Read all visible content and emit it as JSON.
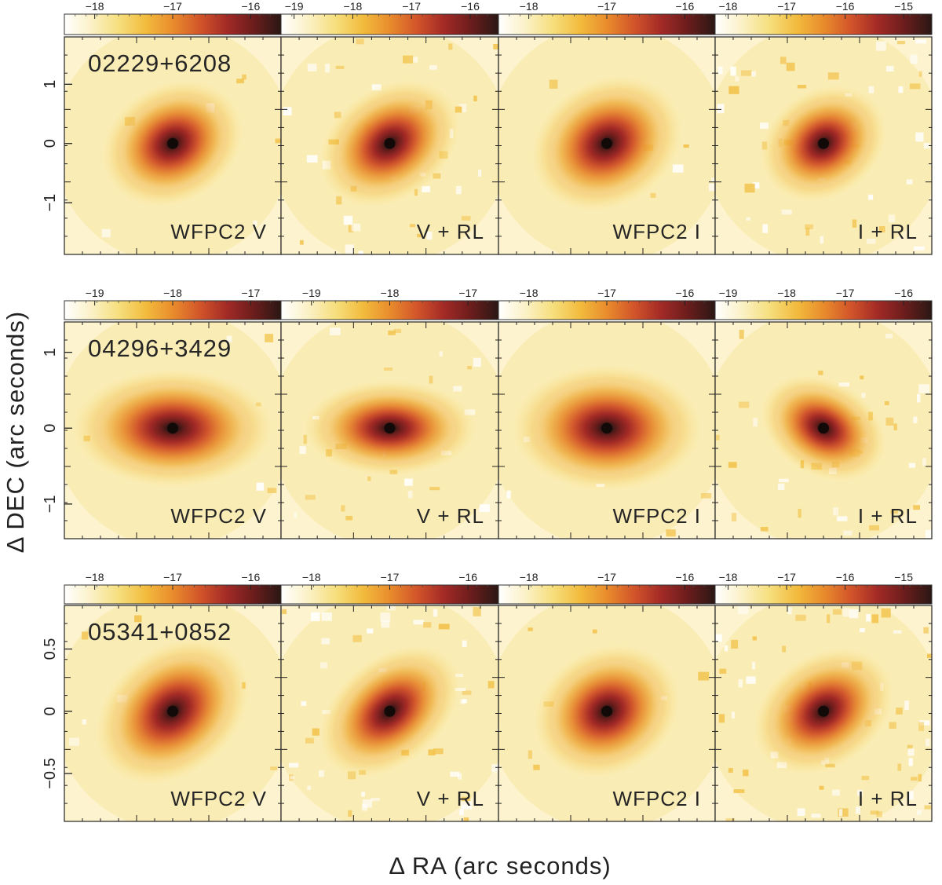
{
  "figure": {
    "xlabel": "Δ RA (arc seconds)",
    "ylabel": "Δ DEC (arc seconds)"
  },
  "colormap": [
    "#ffffff",
    "#fbf1c6",
    "#f6df7e",
    "#f2bc3e",
    "#e98c2c",
    "#d2552a",
    "#a32a26",
    "#6a1d1c",
    "#2a1714"
  ],
  "rows": [
    {
      "object": "02229+6208",
      "yticks": [
        {
          "v": 1,
          "label": "1"
        },
        {
          "v": 0,
          "label": "0"
        },
        {
          "v": -1,
          "label": "−1"
        }
      ],
      "panels": [
        {
          "label": "WFPC2 V",
          "cbar_ticks": [
            "−18",
            "−17",
            "−16"
          ],
          "size": 0.42,
          "angle": 30,
          "elong": 1.25,
          "noise": 0.05
        },
        {
          "label": "V + RL",
          "cbar_ticks": [
            "−19",
            "−18",
            "−17",
            "−16"
          ],
          "size": 0.4,
          "angle": 35,
          "elong": 1.35,
          "noise": 0.3
        },
        {
          "label": "WFPC2 I",
          "cbar_ticks": [
            "−18",
            "−17",
            "−16"
          ],
          "size": 0.45,
          "angle": 30,
          "elong": 1.25,
          "noise": 0.05
        },
        {
          "label": "I + RL",
          "cbar_ticks": [
            "−18",
            "−17",
            "−16",
            "−15"
          ],
          "size": 0.38,
          "angle": 35,
          "elong": 1.25,
          "noise": 0.35
        }
      ]
    },
    {
      "object": "04296+3429",
      "yticks": [
        {
          "v": 1,
          "label": "1"
        },
        {
          "v": 0,
          "label": "0"
        },
        {
          "v": -1,
          "label": "−1"
        }
      ],
      "panels": [
        {
          "label": "WFPC2 V",
          "cbar_ticks": [
            "−19",
            "−18",
            "−17"
          ],
          "size": 0.42,
          "angle": 0,
          "elong": 1.7,
          "noise": 0.05
        },
        {
          "label": "V + RL",
          "cbar_ticks": [
            "−19",
            "−18",
            "−17"
          ],
          "size": 0.34,
          "angle": 0,
          "elong": 1.8,
          "noise": 0.2
        },
        {
          "label": "WFPC2 I",
          "cbar_ticks": [
            "−18",
            "−17",
            "−16"
          ],
          "size": 0.45,
          "angle": 0,
          "elong": 1.5,
          "noise": 0.05
        },
        {
          "label": "I + RL",
          "cbar_ticks": [
            "−19",
            "−18",
            "−17",
            "−16"
          ],
          "size": 0.34,
          "angle": -30,
          "elong": 1.4,
          "noise": 0.3
        }
      ]
    },
    {
      "object": "05341+0852",
      "yticks": [
        {
          "v": 0.5,
          "label": "0.5"
        },
        {
          "v": 0,
          "label": "0"
        },
        {
          "v": -0.5,
          "label": "−0.5"
        }
      ],
      "panels": [
        {
          "label": "WFPC2 V",
          "cbar_ticks": [
            "−18",
            "−17",
            "−16"
          ],
          "size": 0.45,
          "angle": 40,
          "elong": 1.35,
          "noise": 0.05
        },
        {
          "label": "V + RL",
          "cbar_ticks": [
            "−18",
            "−17",
            "−16"
          ],
          "size": 0.38,
          "angle": 40,
          "elong": 1.5,
          "noise": 0.4
        },
        {
          "label": "WFPC2 I",
          "cbar_ticks": [
            "−18",
            "−17",
            "−16"
          ],
          "size": 0.45,
          "angle": 30,
          "elong": 1.2,
          "noise": 0.05
        },
        {
          "label": "I + RL",
          "cbar_ticks": [
            "−18",
            "−17",
            "−16",
            "−15"
          ],
          "size": 0.4,
          "angle": 35,
          "elong": 1.35,
          "noise": 0.5
        }
      ]
    }
  ]
}
